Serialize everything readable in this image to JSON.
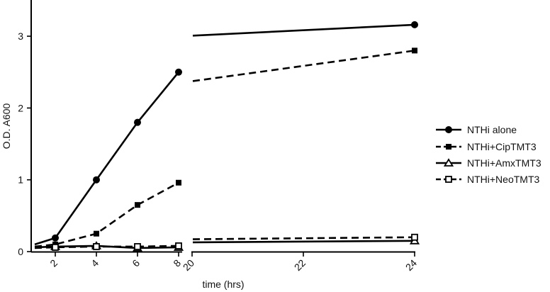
{
  "chart_data": {
    "type": "line",
    "xlabel": "time (hrs)",
    "ylabel": "O.D. A600",
    "x_axis_segments": [
      {
        "range": [
          1,
          8.2
        ],
        "ticks": [
          2,
          4,
          6,
          8
        ]
      },
      {
        "range": [
          20,
          24
        ],
        "ticks": [
          20,
          22,
          24
        ]
      }
    ],
    "ylim": [
      0,
      3.5
    ],
    "yticks": [
      0,
      1,
      2,
      3
    ],
    "grid": false,
    "legend_position": "right",
    "series": [
      {
        "name": "NTHi alone",
        "marker": "filled-circle",
        "line_style": "solid",
        "x": [
          1,
          2,
          4,
          6,
          8,
          24
        ],
        "y": [
          0.1,
          0.19,
          1.0,
          1.8,
          2.5,
          3.16
        ]
      },
      {
        "name": "NTHi+CipTMT3",
        "marker": "filled-square",
        "line_style": "dashed",
        "x": [
          1,
          2,
          4,
          6,
          8,
          24
        ],
        "y": [
          0.07,
          0.1,
          0.25,
          0.65,
          0.96,
          2.8
        ]
      },
      {
        "name": "NTHi+AmxTMT3",
        "marker": "open-triangle",
        "line_style": "solid",
        "x": [
          1,
          2,
          4,
          6,
          8,
          24
        ],
        "y": [
          0.06,
          0.07,
          0.08,
          0.05,
          0.06,
          0.15
        ]
      },
      {
        "name": "NTHi+NeoTMT3",
        "marker": "open-square",
        "line_style": "dashed",
        "x": [
          1,
          2,
          4,
          6,
          8,
          24
        ],
        "y": [
          0.05,
          0.06,
          0.07,
          0.07,
          0.08,
          0.2
        ]
      }
    ]
  }
}
